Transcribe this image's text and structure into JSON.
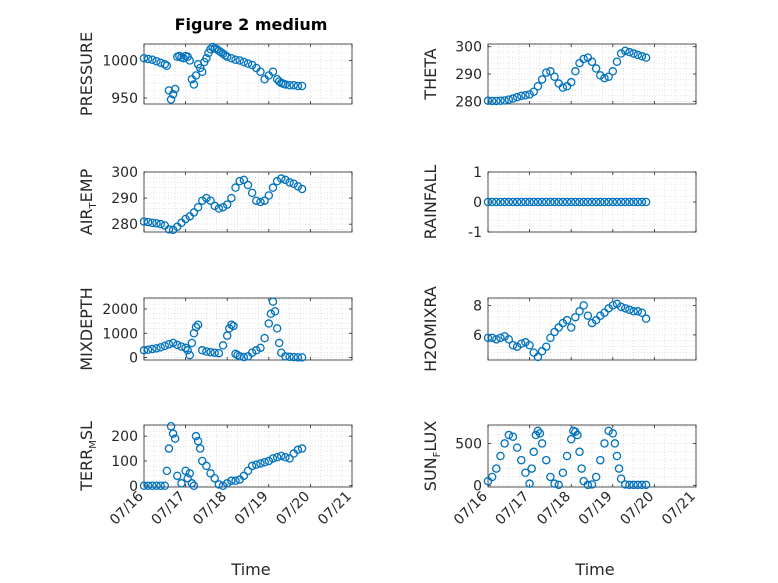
{
  "figure": {
    "title": "Figure 2 medium",
    "xlabel": "Time",
    "x_ticks": [
      "07/16",
      "07/17",
      "07/18",
      "07/19",
      "07/20",
      "07/21"
    ],
    "marker_color": "#0072BD"
  },
  "chart_data": [
    {
      "type": "scatter",
      "marker": "circle",
      "ylabel": "PRESSURE",
      "yticks": [
        950,
        1000
      ],
      "ylim": [
        942,
        1022
      ],
      "grid": true,
      "x_units": "days since 07/16",
      "xlim": [
        0,
        5
      ],
      "x": [
        0.0,
        0.1,
        0.2,
        0.3,
        0.4,
        0.5,
        0.55,
        0.6,
        0.65,
        0.7,
        0.75,
        0.8,
        0.85,
        0.9,
        0.95,
        1.0,
        1.05,
        1.1,
        1.15,
        1.2,
        1.25,
        1.3,
        1.35,
        1.4,
        1.45,
        1.5,
        1.55,
        1.6,
        1.65,
        1.7,
        1.75,
        1.8,
        1.85,
        1.9,
        1.95,
        2.0,
        2.1,
        2.2,
        2.3,
        2.4,
        2.5,
        2.6,
        2.7,
        2.8,
        2.9,
        3.0,
        3.1,
        3.2,
        3.25,
        3.3,
        3.35,
        3.4,
        3.5,
        3.6,
        3.7,
        3.8
      ],
      "y": [
        1003,
        1002,
        1001,
        999,
        997,
        995,
        993,
        960,
        948,
        955,
        962,
        1005,
        1006,
        1004,
        1003,
        1006,
        1005,
        1000,
        975,
        968,
        980,
        995,
        990,
        985,
        998,
        1003,
        1010,
        1015,
        1018,
        1016,
        1015,
        1013,
        1011,
        1009,
        1007,
        1005,
        1003,
        1001,
        1000,
        998,
        996,
        994,
        990,
        985,
        975,
        980,
        985,
        975,
        972,
        970,
        969,
        968,
        967,
        967,
        966,
        966
      ]
    },
    {
      "type": "scatter",
      "marker": "circle",
      "ylabel": "THETA",
      "yticks": [
        280,
        290,
        300
      ],
      "ylim": [
        279,
        301
      ],
      "grid": true,
      "x_units": "days since 07/16",
      "xlim": [
        0,
        5
      ],
      "x": [
        0.0,
        0.1,
        0.2,
        0.3,
        0.4,
        0.5,
        0.6,
        0.7,
        0.8,
        0.9,
        1.0,
        1.1,
        1.2,
        1.3,
        1.4,
        1.5,
        1.6,
        1.7,
        1.8,
        1.9,
        2.0,
        2.1,
        2.2,
        2.3,
        2.4,
        2.5,
        2.6,
        2.7,
        2.8,
        2.9,
        3.0,
        3.1,
        3.2,
        3.3,
        3.4,
        3.5,
        3.6,
        3.7,
        3.8
      ],
      "y": [
        280.2,
        280.1,
        280.1,
        280.2,
        280.3,
        280.6,
        281.0,
        281.5,
        282.0,
        282.2,
        282.5,
        283.5,
        285.5,
        288.0,
        290.5,
        291.0,
        289.0,
        286.5,
        285.0,
        285.5,
        287.0,
        291.0,
        294.0,
        295.5,
        296.0,
        294.5,
        292.0,
        289.5,
        288.5,
        289.0,
        291.0,
        294.5,
        297.5,
        298.5,
        298.0,
        297.5,
        297.0,
        296.5,
        296.0
      ]
    },
    {
      "type": "scatter",
      "marker": "circle",
      "ylabel_main": "AIR",
      "ylabel_sub": "T",
      "ylabel_rest": "EMP",
      "yticks": [
        280,
        290,
        300
      ],
      "ylim": [
        277,
        300
      ],
      "grid": true,
      "x_units": "days since 07/16",
      "xlim": [
        0,
        5
      ],
      "x": [
        0.0,
        0.1,
        0.2,
        0.3,
        0.4,
        0.5,
        0.6,
        0.7,
        0.8,
        0.9,
        1.0,
        1.1,
        1.2,
        1.3,
        1.4,
        1.5,
        1.6,
        1.7,
        1.8,
        1.9,
        2.0,
        2.1,
        2.2,
        2.3,
        2.4,
        2.5,
        2.6,
        2.7,
        2.8,
        2.9,
        3.0,
        3.1,
        3.2,
        3.3,
        3.4,
        3.5,
        3.6,
        3.7,
        3.8
      ],
      "y": [
        281.0,
        280.8,
        280.5,
        280.3,
        280.0,
        279.5,
        278.0,
        277.8,
        279.0,
        280.5,
        282.0,
        283.0,
        284.5,
        286.5,
        289.0,
        290.0,
        289.0,
        287.0,
        286.0,
        286.5,
        287.5,
        290.0,
        294.0,
        296.5,
        297.0,
        295.0,
        292.0,
        289.0,
        288.5,
        289.0,
        291.0,
        294.0,
        296.5,
        297.5,
        297.0,
        296.0,
        295.5,
        294.5,
        293.5
      ]
    },
    {
      "type": "scatter",
      "marker": "circle",
      "ylabel": "RAINFALL",
      "yticks": [
        -1,
        0,
        1
      ],
      "ylim": [
        -1,
        1
      ],
      "grid": true,
      "x_units": "days since 07/16",
      "xlim": [
        0,
        5
      ],
      "x": [
        0.0,
        0.1,
        0.2,
        0.3,
        0.4,
        0.5,
        0.6,
        0.7,
        0.8,
        0.9,
        1.0,
        1.1,
        1.2,
        1.3,
        1.4,
        1.5,
        1.6,
        1.7,
        1.8,
        1.9,
        2.0,
        2.1,
        2.2,
        2.3,
        2.4,
        2.5,
        2.6,
        2.7,
        2.8,
        2.9,
        3.0,
        3.1,
        3.2,
        3.3,
        3.4,
        3.5,
        3.6,
        3.7,
        3.8
      ],
      "y": [
        0,
        0,
        0,
        0,
        0,
        0,
        0,
        0,
        0,
        0,
        0,
        0,
        0,
        0,
        0,
        0,
        0,
        0,
        0,
        0,
        0,
        0,
        0,
        0,
        0,
        0,
        0,
        0,
        0,
        0,
        0,
        0,
        0,
        0,
        0,
        0,
        0,
        0,
        0
      ]
    },
    {
      "type": "scatter",
      "marker": "circle",
      "ylabel": "MIXDEPTH",
      "yticks": [
        0,
        1000,
        2000
      ],
      "ylim": [
        -100,
        2450
      ],
      "grid": true,
      "x_units": "days since 07/16",
      "xlim": [
        0,
        5
      ],
      "x": [
        0.0,
        0.1,
        0.2,
        0.3,
        0.4,
        0.5,
        0.6,
        0.7,
        0.8,
        0.9,
        1.0,
        1.05,
        1.1,
        1.15,
        1.2,
        1.25,
        1.3,
        1.4,
        1.5,
        1.6,
        1.7,
        1.8,
        1.9,
        2.0,
        2.05,
        2.1,
        2.15,
        2.2,
        2.25,
        2.3,
        2.4,
        2.5,
        2.6,
        2.7,
        2.8,
        2.9,
        3.0,
        3.05,
        3.1,
        3.15,
        3.2,
        3.25,
        3.3,
        3.4,
        3.5,
        3.6,
        3.7,
        3.8
      ],
      "y": [
        300,
        320,
        350,
        380,
        420,
        480,
        550,
        600,
        520,
        450,
        400,
        300,
        100,
        600,
        1000,
        1250,
        1350,
        300,
        250,
        220,
        200,
        180,
        500,
        900,
        1200,
        1350,
        1300,
        150,
        100,
        50,
        20,
        50,
        200,
        300,
        400,
        800,
        1400,
        1800,
        2300,
        1900,
        1200,
        600,
        200,
        50,
        30,
        20,
        10,
        10
      ]
    },
    {
      "type": "scatter",
      "marker": "circle",
      "ylabel": "H2OMIXRA",
      "yticks": [
        6,
        8
      ],
      "ylim": [
        4.3,
        8.5
      ],
      "grid": true,
      "x_units": "days since 07/16",
      "xlim": [
        0,
        5
      ],
      "x": [
        0.0,
        0.1,
        0.2,
        0.3,
        0.4,
        0.5,
        0.6,
        0.7,
        0.8,
        0.9,
        1.0,
        1.1,
        1.2,
        1.3,
        1.4,
        1.5,
        1.6,
        1.7,
        1.8,
        1.9,
        2.0,
        2.1,
        2.2,
        2.3,
        2.4,
        2.5,
        2.6,
        2.7,
        2.8,
        2.9,
        3.0,
        3.1,
        3.2,
        3.3,
        3.4,
        3.5,
        3.6,
        3.7,
        3.8
      ],
      "y": [
        5.8,
        5.8,
        5.7,
        5.8,
        5.9,
        5.7,
        5.3,
        5.2,
        5.4,
        5.5,
        5.3,
        4.8,
        4.5,
        4.9,
        5.2,
        5.8,
        6.2,
        6.5,
        6.8,
        7.0,
        6.5,
        7.2,
        7.6,
        8.0,
        7.3,
        6.8,
        7.0,
        7.3,
        7.5,
        7.8,
        8.0,
        8.1,
        7.9,
        7.8,
        7.7,
        7.6,
        7.6,
        7.5,
        7.1
      ]
    },
    {
      "type": "scatter",
      "marker": "circle",
      "ylabel_main": "TERR",
      "ylabel_sub": "M",
      "ylabel_rest": "SL",
      "yticks": [
        0,
        100,
        200
      ],
      "ylim": [
        -5,
        245
      ],
      "grid": true,
      "x_units": "days since 07/16",
      "xlim": [
        0,
        5
      ],
      "x": [
        0.0,
        0.1,
        0.2,
        0.3,
        0.4,
        0.5,
        0.55,
        0.6,
        0.65,
        0.7,
        0.75,
        0.8,
        0.9,
        1.0,
        1.05,
        1.1,
        1.15,
        1.2,
        1.25,
        1.3,
        1.35,
        1.4,
        1.5,
        1.6,
        1.7,
        1.8,
        1.9,
        2.0,
        2.1,
        2.2,
        2.3,
        2.4,
        2.5,
        2.6,
        2.7,
        2.8,
        2.9,
        3.0,
        3.1,
        3.2,
        3.3,
        3.4,
        3.5,
        3.6,
        3.7,
        3.8
      ],
      "y": [
        0,
        0,
        0,
        0,
        0,
        0,
        60,
        150,
        240,
        210,
        190,
        40,
        10,
        60,
        30,
        50,
        10,
        0,
        200,
        180,
        150,
        100,
        80,
        50,
        30,
        5,
        0,
        10,
        20,
        20,
        25,
        40,
        60,
        80,
        85,
        90,
        95,
        100,
        110,
        115,
        120,
        115,
        110,
        130,
        145,
        150
      ]
    },
    {
      "type": "scatter",
      "marker": "circle",
      "ylabel_main": "SUN",
      "ylabel_sub": "F",
      "ylabel_rest": "LUX",
      "yticks": [
        0,
        500
      ],
      "ylim": [
        -20,
        720
      ],
      "grid": true,
      "x_units": "days since 07/16",
      "xlim": [
        0,
        5
      ],
      "x": [
        0.0,
        0.1,
        0.2,
        0.3,
        0.4,
        0.5,
        0.6,
        0.7,
        0.8,
        0.9,
        1.0,
        1.05,
        1.1,
        1.15,
        1.2,
        1.25,
        1.3,
        1.4,
        1.5,
        1.6,
        1.7,
        1.8,
        1.9,
        2.0,
        2.05,
        2.1,
        2.15,
        2.2,
        2.25,
        2.3,
        2.4,
        2.5,
        2.6,
        2.7,
        2.8,
        2.9,
        3.0,
        3.05,
        3.1,
        3.15,
        3.2,
        3.3,
        3.4,
        3.5,
        3.6,
        3.7,
        3.8
      ],
      "y": [
        50,
        100,
        200,
        350,
        500,
        600,
        580,
        450,
        300,
        150,
        20,
        200,
        400,
        600,
        650,
        620,
        500,
        300,
        100,
        20,
        5,
        150,
        350,
        550,
        650,
        640,
        600,
        400,
        200,
        50,
        5,
        10,
        100,
        300,
        500,
        650,
        620,
        500,
        350,
        200,
        80,
        10,
        5,
        5,
        5,
        5,
        5
      ]
    }
  ]
}
